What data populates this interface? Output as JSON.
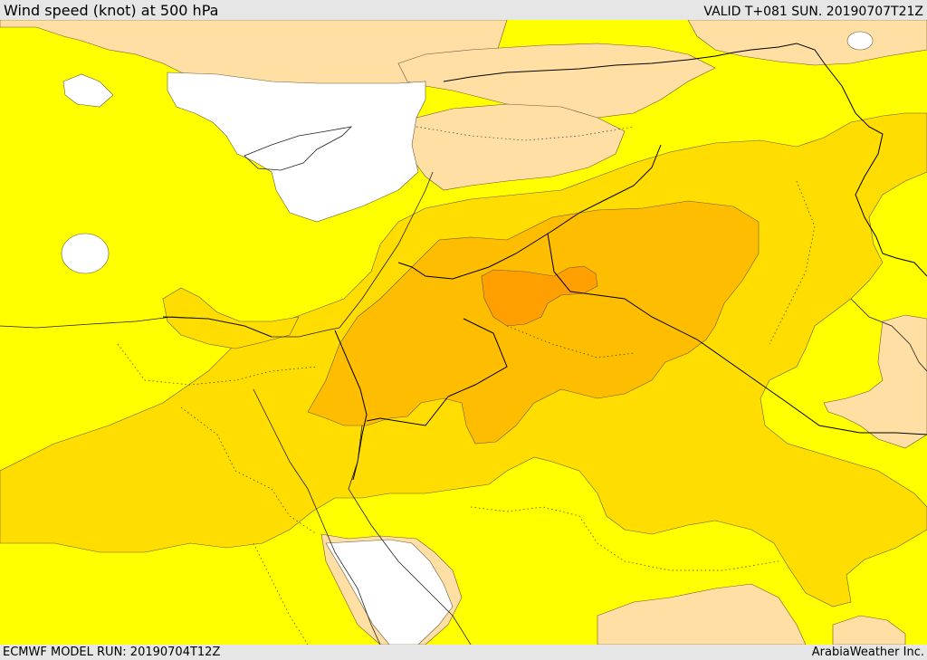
{
  "header": {
    "title": "Wind speed (knot) at 500 hPa",
    "valid": "VALID T+081 SUN. 20190707T21Z"
  },
  "footer": {
    "model_run": "ECMWF MODEL RUN: 20190704T12Z",
    "credit": "ArabiaWeather Inc."
  },
  "colors": {
    "white_band": "#ffffff",
    "light_band": "#ffdfa3",
    "yellow_band": "#ffff00",
    "gold_band": "#ffdd00",
    "amber_band": "#ffbd00",
    "orange_band": "#ffa000",
    "border_line": "#000000"
  }
}
